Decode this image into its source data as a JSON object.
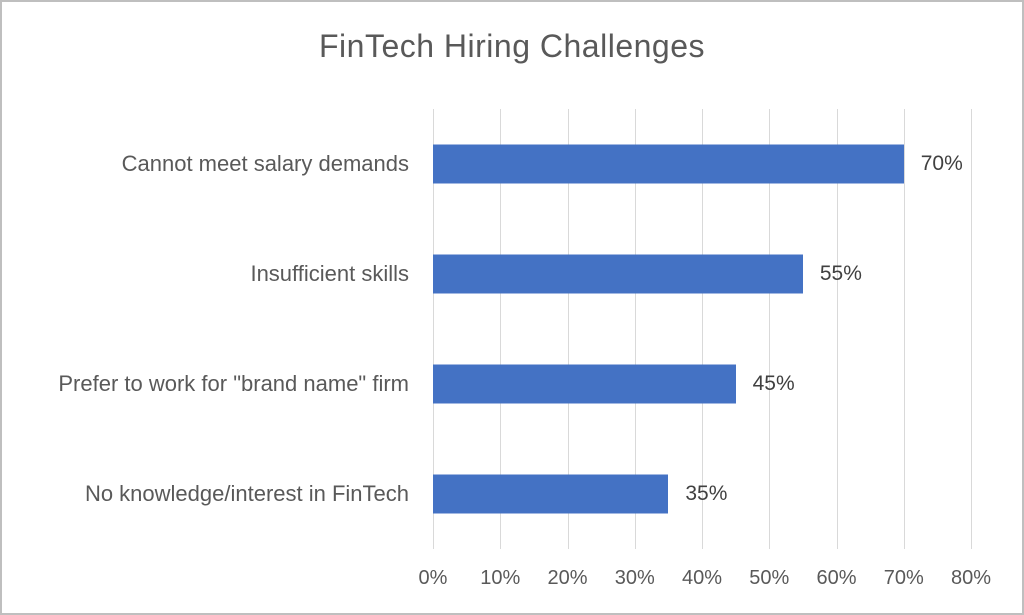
{
  "chart_data": {
    "type": "bar",
    "orientation": "horizontal",
    "title": "FinTech Hiring Challenges",
    "categories": [
      "Cannot meet salary demands",
      "Insufficient skills",
      "Prefer to work for \"brand name\" firm",
      "No knowledge/interest in FinTech"
    ],
    "values": [
      70,
      55,
      45,
      35
    ],
    "data_labels": [
      "70%",
      "55%",
      "45%",
      "35%"
    ],
    "xlabel": "",
    "ylabel": "",
    "xlim": [
      0,
      80
    ],
    "xticks": [
      "0%",
      "10%",
      "20%",
      "30%",
      "40%",
      "50%",
      "60%",
      "70%",
      "80%"
    ],
    "grid": "vertical-on",
    "legend": "none",
    "bar_color": "#4472C4",
    "gridline_color": "#D9D9D9",
    "title_color": "#595959",
    "axis_text_color": "#595959",
    "data_label_color": "#404040"
  }
}
